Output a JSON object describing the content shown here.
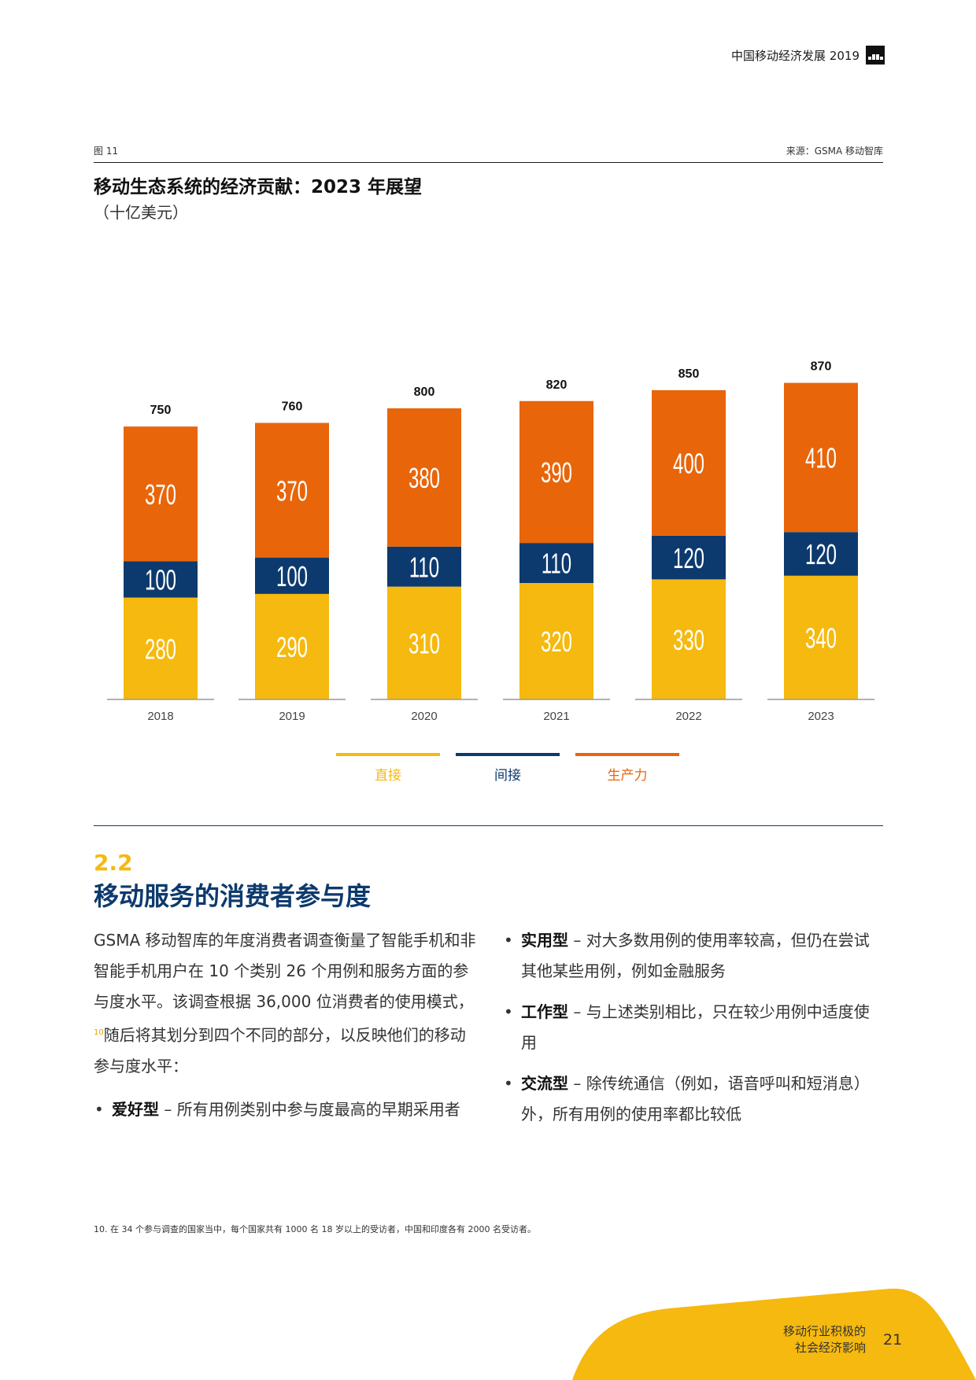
{
  "header": {
    "title": "中国移动经济发展 2019",
    "logo_label": "GSMA"
  },
  "figure": {
    "number": "图 11",
    "source": "来源：GSMA 移动智库",
    "title": "移动生态系统的经济贡献：2023 年展望",
    "unit": "（十亿美元）"
  },
  "chart_data": {
    "type": "bar",
    "stacked": true,
    "categories": [
      "2018",
      "2019",
      "2020",
      "2021",
      "2022",
      "2023"
    ],
    "series": [
      {
        "name": "直接",
        "color": "#f5b90f",
        "values": [
          280,
          290,
          310,
          320,
          330,
          340
        ]
      },
      {
        "name": "间接",
        "color": "#0d3a6e",
        "values": [
          100,
          100,
          110,
          110,
          120,
          120
        ]
      },
      {
        "name": "生产力",
        "color": "#e8650a",
        "values": [
          370,
          370,
          380,
          390,
          400,
          410
        ]
      }
    ],
    "totals": [
      750,
      760,
      800,
      820,
      850,
      870
    ],
    "ylim": [
      0,
      900
    ],
    "legend": "bottom"
  },
  "legend": [
    {
      "label": "直接",
      "color": "#f5b90f"
    },
    {
      "label": "间接",
      "color": "#0d3a6e"
    },
    {
      "label": "生产力",
      "color": "#e8650a"
    }
  ],
  "section": {
    "number": "2.2",
    "title": "移动服务的消费者参与度",
    "intro_1": "GSMA 移动智库的年度消费者调查衡量了智能手机和非智能手机用户在 10 个类别 26 个用例和服务方面的参与度水平。该调查根据 36,000 位消费者的使用模式，",
    "intro_ref": "10",
    "intro_2": "随后将其划分到四个不同的部分，以反映他们的移动参与度水平：",
    "bullets": [
      {
        "term": "爱好型",
        "text": " – 所有用例类别中参与度最高的早期采用者"
      },
      {
        "term": "实用型",
        "text": " – 对大多数用例的使用率较高，但仍在尝试其他某些用例，例如金融服务"
      },
      {
        "term": "工作型",
        "text": " – 与上述类别相比，只在较少用例中适度使用"
      },
      {
        "term": "交流型",
        "text": " – 除传统通信（例如，语音呼叫和短消息）外，所有用例的使用率都比较低"
      }
    ]
  },
  "footnote": "10. 在 34 个参与调查的国家当中，每个国家共有 1000 名 18 岁以上的受访者，中国和印度各有 2000 名受访者。",
  "footer": {
    "label_line1": "移动行业积极的",
    "label_line2": "社会经济影响",
    "page_number": "21"
  }
}
